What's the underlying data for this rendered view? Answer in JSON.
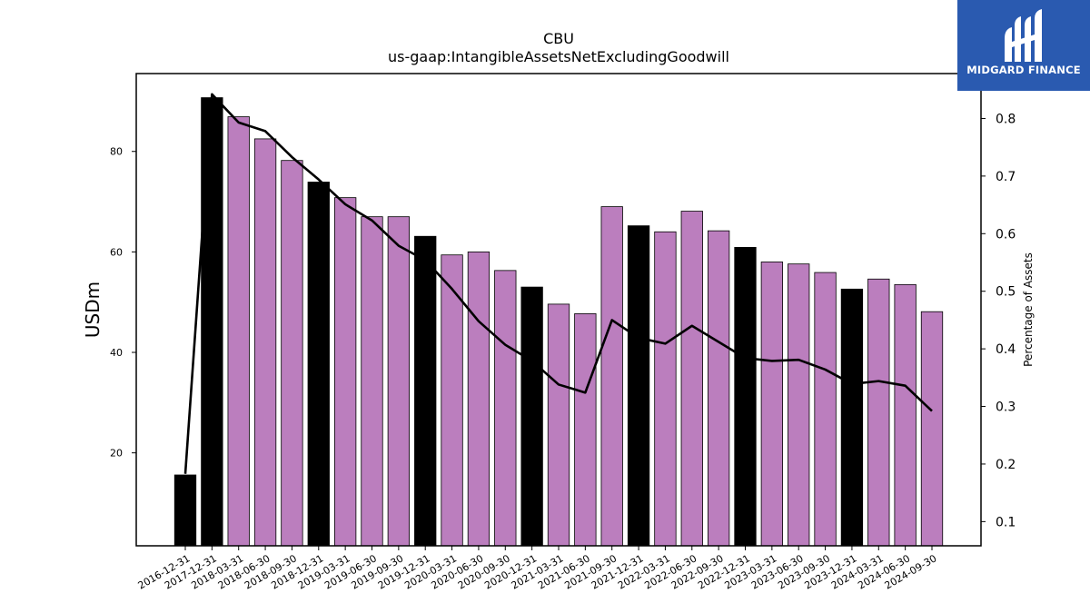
{
  "chart_data": {
    "type": "bar",
    "title": "CBU",
    "subtitle": "us-gaap:IntangibleAssetsNetExcludingGoodwill",
    "ylabel": "USDm",
    "y2label": "Percentage of Assets",
    "ylim": [
      1.5,
      95.5
    ],
    "y2lim": [
      0.058,
      0.878
    ],
    "yticks": [
      20,
      40,
      60,
      80
    ],
    "y2ticks": [
      0.1,
      0.2,
      0.3,
      0.4,
      0.5,
      0.6,
      0.7,
      0.8
    ],
    "categories": [
      "2016-12-31",
      "2017-12-31",
      "2018-03-31",
      "2018-06-30",
      "2018-09-30",
      "2018-12-31",
      "2019-03-31",
      "2019-06-30",
      "2019-09-30",
      "2019-12-31",
      "2020-03-31",
      "2020-06-30",
      "2020-09-30",
      "2020-12-31",
      "2021-03-31",
      "2021-06-30",
      "2021-09-30",
      "2021-12-31",
      "2022-03-31",
      "2022-06-30",
      "2022-09-30",
      "2022-12-31",
      "2023-03-31",
      "2023-06-30",
      "2023-09-30",
      "2023-12-31",
      "2024-03-31",
      "2024-06-30",
      "2024-09-30"
    ],
    "series": [
      {
        "kind": "bar",
        "axis": "left",
        "values": [
          15.6,
          90.7,
          86.9,
          82.5,
          78.2,
          73.9,
          70.8,
          67.0,
          67.0,
          63.1,
          59.4,
          60.0,
          56.3,
          53.0,
          49.6,
          47.7,
          69.0,
          65.2,
          64.0,
          68.1,
          64.2,
          60.9,
          58.0,
          57.6,
          55.9,
          52.6,
          54.6,
          53.5,
          48.1
        ],
        "colors": [
          "#000000",
          "#000000",
          "#bb7ebe",
          "#bb7ebe",
          "#bb7ebe",
          "#000000",
          "#bb7ebe",
          "#bb7ebe",
          "#bb7ebe",
          "#000000",
          "#bb7ebe",
          "#bb7ebe",
          "#bb7ebe",
          "#000000",
          "#bb7ebe",
          "#bb7ebe",
          "#bb7ebe",
          "#000000",
          "#bb7ebe",
          "#bb7ebe",
          "#bb7ebe",
          "#000000",
          "#bb7ebe",
          "#bb7ebe",
          "#bb7ebe",
          "#000000",
          "#bb7ebe",
          "#bb7ebe",
          "#bb7ebe"
        ]
      },
      {
        "kind": "line",
        "axis": "right",
        "color": "#000000",
        "values": [
          0.183,
          0.842,
          0.793,
          0.778,
          0.733,
          0.694,
          0.651,
          0.623,
          0.579,
          0.554,
          0.504,
          0.448,
          0.407,
          0.379,
          0.338,
          0.324,
          0.45,
          0.419,
          0.409,
          0.44,
          0.412,
          0.384,
          0.379,
          0.381,
          0.364,
          0.339,
          0.344,
          0.336,
          0.292
        ]
      }
    ],
    "grid": false,
    "legend": "none"
  },
  "logo": {
    "text": "MIDGARD FINANCE",
    "background": "#2a5ab0"
  }
}
